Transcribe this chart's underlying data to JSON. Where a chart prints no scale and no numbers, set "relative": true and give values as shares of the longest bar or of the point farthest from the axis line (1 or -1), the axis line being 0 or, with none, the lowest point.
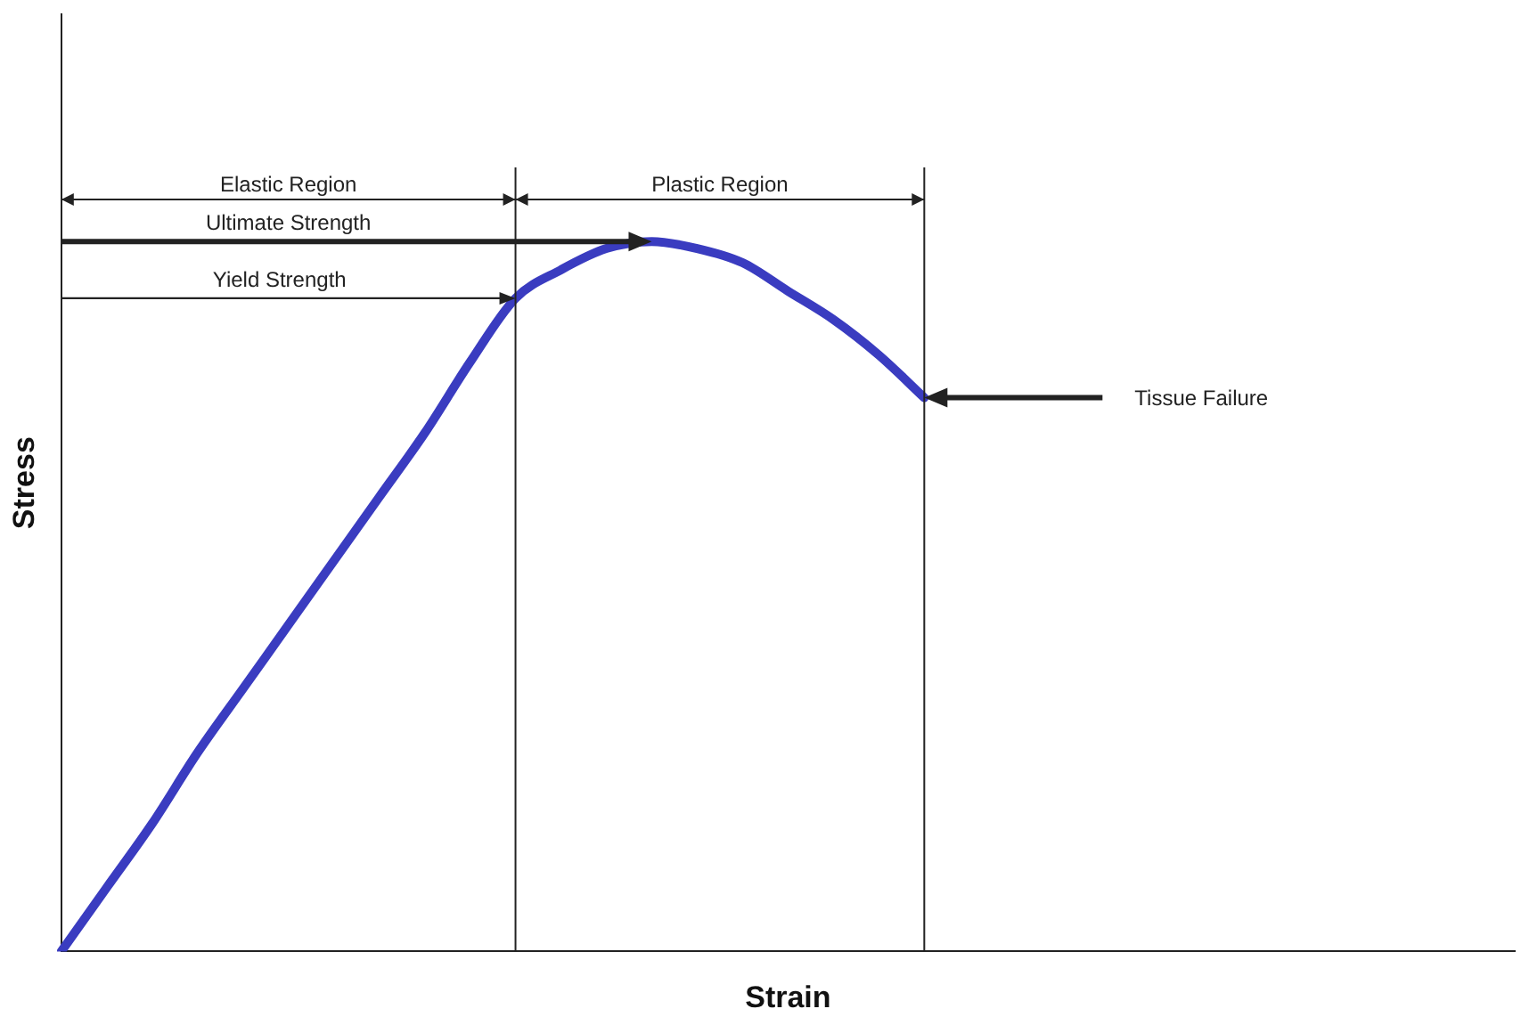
{
  "chart_data": {
    "type": "line",
    "relative": true,
    "xlabel": "Strain",
    "ylabel": "Stress",
    "grid": false,
    "legend": false,
    "marker": "none",
    "line_style": "solid",
    "categories": [
      null,
      null,
      null,
      null,
      null,
      null,
      null,
      null,
      null,
      null,
      null,
      null,
      null,
      null,
      null,
      null,
      null,
      null,
      null,
      null,
      null,
      null,
      null,
      null,
      null,
      null,
      null,
      null,
      null,
      null,
      null,
      null,
      null
    ],
    "series": [
      {
        "color": "#3a3cc0",
        "values": [
          0,
          0.09,
          0.18,
          0.28,
          0.37,
          0.46,
          0.55,
          0.64,
          0.73,
          0.83,
          0.92,
          0.96,
          0.99,
          1,
          0.99,
          0.97,
          0.93,
          0.89,
          0.84,
          0.78,
          null,
          null,
          null,
          null,
          null,
          null,
          null,
          null,
          null,
          null,
          null,
          null,
          null
        ]
      }
    ],
    "annotations": [
      "Elastic Region",
      "Plastic Region",
      "Ultimate Strength",
      "Yield Strength",
      "Tissue Failure"
    ]
  }
}
